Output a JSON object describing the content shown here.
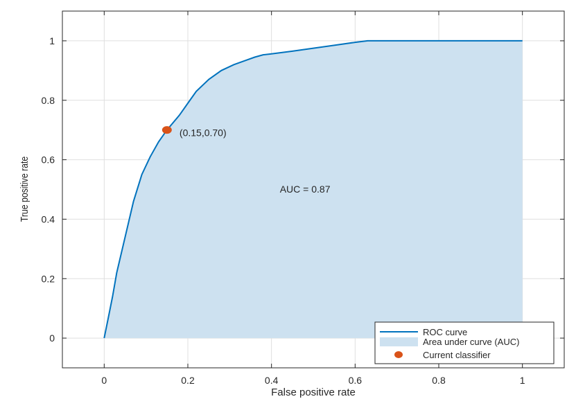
{
  "chart_data": {
    "type": "area",
    "title": "",
    "xlabel": "False positive rate",
    "ylabel": "True positive rate",
    "xlim": [
      -0.1,
      1.1
    ],
    "ylim": [
      -0.1,
      1.1
    ],
    "xticks": [
      0,
      0.2,
      0.4,
      0.6,
      0.8,
      1
    ],
    "yticks": [
      0,
      0.2,
      0.4,
      0.6,
      0.8,
      1
    ],
    "xtick_labels": [
      "0",
      "0.2",
      "0.4",
      "0.6",
      "0.8",
      "1"
    ],
    "ytick_labels": [
      "0",
      "0.2",
      "0.4",
      "0.6",
      "0.8",
      "1"
    ],
    "grid": true,
    "legend_position": "bottom-right",
    "series": [
      {
        "name": "ROC curve",
        "kind": "line",
        "color": "#0072bd",
        "x": [
          0,
          0.01,
          0.02,
          0.03,
          0.05,
          0.07,
          0.09,
          0.11,
          0.13,
          0.15,
          0.18,
          0.2,
          0.22,
          0.25,
          0.28,
          0.31,
          0.34,
          0.36,
          0.38,
          0.4,
          0.45,
          0.5,
          0.55,
          0.6,
          0.63,
          0.7,
          0.8,
          0.9,
          1.0
        ],
        "y": [
          0,
          0.07,
          0.14,
          0.22,
          0.34,
          0.46,
          0.55,
          0.61,
          0.66,
          0.7,
          0.75,
          0.79,
          0.83,
          0.87,
          0.9,
          0.92,
          0.935,
          0.945,
          0.953,
          0.956,
          0.965,
          0.975,
          0.985,
          0.995,
          1.0,
          1.0,
          1.0,
          1.0,
          1.0
        ]
      },
      {
        "name": "Area under curve (AUC)",
        "kind": "area",
        "color": "#cde1f0"
      },
      {
        "name": "Current classifier",
        "kind": "point",
        "color": "#d95319",
        "x": [
          0.15
        ],
        "y": [
          0.7
        ]
      }
    ],
    "annotations": [
      {
        "text": "(0.15,0.70)",
        "x": 0.18,
        "y": 0.68
      },
      {
        "text": "AUC = 0.87",
        "x": 0.42,
        "y": 0.49
      }
    ]
  }
}
